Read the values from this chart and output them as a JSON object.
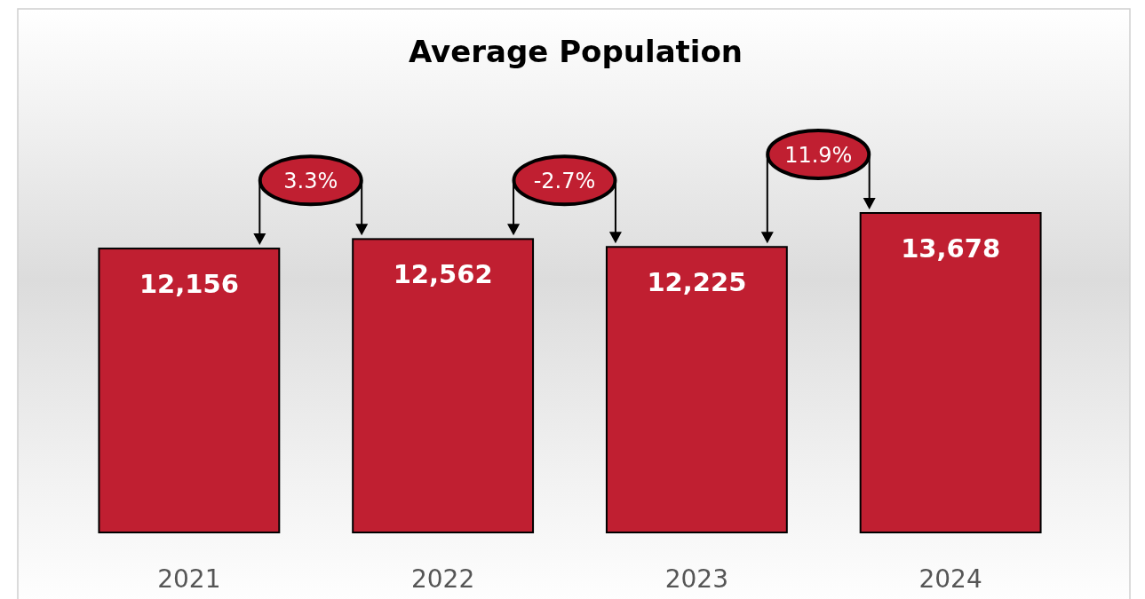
{
  "chart_data": {
    "type": "bar",
    "title": "Average Population",
    "categories": [
      "2021",
      "2022",
      "2023",
      "2024"
    ],
    "values": [
      12156,
      12562,
      12225,
      13678
    ],
    "color": "#c01f31",
    "tick_labels": "x",
    "value_labels": [
      "12,156",
      "12,562",
      "12,225",
      "13,678"
    ],
    "annotations": [
      "3.3%",
      "-2.7%",
      "11.9%"
    ]
  }
}
